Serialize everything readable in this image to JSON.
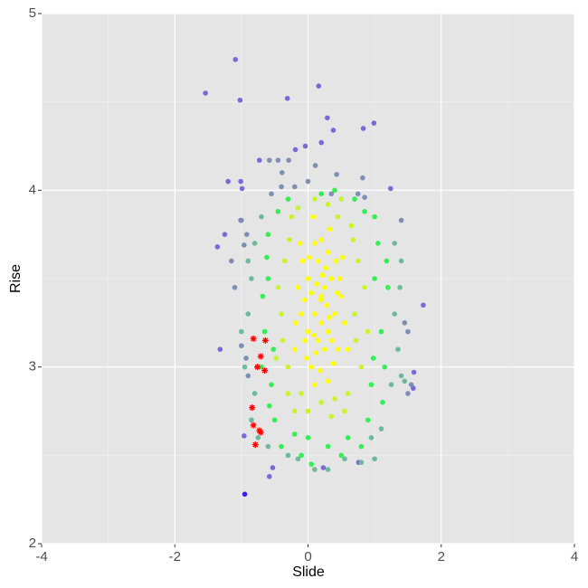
{
  "chart_data": {
    "type": "scatter",
    "x_label": "Slide",
    "y_label": "Rise",
    "xlim": [
      -4,
      4
    ],
    "ylim": [
      2,
      5
    ],
    "xticks": [
      -4,
      -2,
      0,
      2,
      4
    ],
    "yticks": [
      2,
      3,
      4,
      5
    ],
    "x_minor_ticks": [
      -3,
      -1,
      1,
      3
    ],
    "y_minor_ticks": [
      2.5,
      3.5,
      4.5
    ],
    "grid": true,
    "background": "#e5e5e5",
    "series": [
      {
        "color": "#7b68d8",
        "marker": "dot",
        "x": [
          -1.54,
          -1.09,
          -1.02,
          -0.31,
          0.16,
          0.29,
          0.38,
          0.99,
          0.83,
          -0.04,
          0.2,
          -0.19,
          -0.73,
          -1.2,
          -1.01,
          -0.99,
          1.24,
          -1.01,
          -1.25,
          -1.36,
          1.73,
          -1.32,
          1.59,
          1.58,
          -0.96,
          -0.53,
          -0.58,
          0.23,
          0.76
        ],
        "values": [
          4.55,
          4.74,
          4.51,
          4.52,
          4.59,
          4.41,
          4.34,
          4.38,
          4.35,
          4.25,
          4.27,
          4.23,
          4.17,
          4.05,
          4.05,
          4.01,
          4.01,
          3.83,
          3.75,
          3.68,
          3.35,
          3.1,
          2.97,
          2.88,
          2.61,
          2.43,
          2.38,
          2.43,
          2.46
        ]
      },
      {
        "color": "#7d8fb3",
        "marker": "dot",
        "x": [
          -1.0,
          -0.96,
          -1.1,
          -1.15,
          -0.92,
          -0.55,
          -0.4,
          0.0,
          0.75,
          0.85,
          1.4,
          1.5,
          1.45,
          -1.0,
          -0.93,
          -0.9,
          0.35,
          -0.2,
          0.11,
          0.43,
          0.82,
          -0.58,
          -0.45,
          -0.29,
          -0.39,
          1.5,
          1.55
        ],
        "values": [
          3.83,
          3.69,
          3.45,
          3.6,
          3.75,
          3.98,
          4.02,
          4.05,
          3.98,
          3.96,
          3.83,
          3.2,
          3.25,
          3.12,
          3.05,
          2.95,
          3.98,
          4.02,
          4.14,
          4.09,
          4.07,
          4.17,
          4.17,
          4.17,
          4.1,
          2.85,
          2.9
        ]
      },
      {
        "color": "#6dba98",
        "marker": "dot",
        "x": [
          -0.9,
          -0.85,
          -0.95,
          -0.8,
          1.3,
          1.35,
          1.25,
          1.4,
          1.3,
          -0.8,
          -0.85,
          0.95,
          1.1,
          -0.3,
          -0.15,
          0.1,
          0.3,
          0.8,
          1.45,
          1.4,
          -0.9,
          -0.75,
          1.38,
          -1.0,
          0.55,
          -0.6,
          1.0,
          -0.7
        ],
        "values": [
          3.3,
          3.5,
          3.0,
          2.85,
          3.3,
          3.1,
          2.9,
          3.6,
          3.7,
          3.7,
          2.7,
          2.6,
          2.65,
          2.5,
          2.48,
          2.42,
          2.42,
          2.46,
          2.92,
          2.95,
          3.6,
          2.6,
          3.45,
          3.2,
          2.48,
          2.55,
          2.48,
          3.85
        ]
      },
      {
        "color": "#33ee55",
        "marker": "dot",
        "x": [
          -0.6,
          -0.65,
          -0.55,
          1.0,
          1.1,
          0.95,
          1.05,
          -0.6,
          -0.5,
          0.9,
          0.0,
          0.3,
          -0.2,
          0.6,
          0.2,
          -0.3,
          0.7,
          1.15,
          -0.7,
          0.8,
          -0.4,
          1.2,
          -0.68,
          0.5,
          -0.1,
          1.0,
          -0.45,
          0.85,
          1.12,
          -0.58,
          0.4,
          0.05,
          1.18,
          -0.62,
          0.98,
          -0.52
        ],
        "values": [
          3.5,
          3.2,
          2.9,
          3.5,
          3.2,
          2.9,
          3.7,
          3.75,
          2.7,
          2.7,
          2.6,
          2.55,
          2.62,
          2.6,
          3.98,
          3.95,
          3.95,
          3.0,
          3.0,
          2.55,
          2.55,
          3.45,
          3.4,
          2.5,
          2.5,
          3.85,
          3.88,
          3.88,
          2.8,
          2.78,
          4.0,
          2.45,
          3.6,
          3.62,
          3.05,
          3.1
        ]
      },
      {
        "color": "#c8f52a",
        "marker": "dot",
        "x": [
          -0.4,
          -0.35,
          -0.3,
          0.7,
          0.75,
          0.8,
          0.6,
          0.65,
          -0.25,
          0.1,
          0.3,
          0.45,
          -0.1,
          0.2,
          0.4,
          -0.3,
          0.85,
          -0.45,
          0.55,
          0.0,
          -0.38,
          0.72,
          0.68,
          -0.28,
          0.5,
          -0.15,
          0.9,
          -0.48,
          0.35,
          -0.2
        ],
        "values": [
          3.3,
          3.6,
          3.0,
          3.3,
          3.6,
          3.0,
          2.85,
          3.8,
          3.85,
          3.95,
          3.92,
          3.85,
          2.85,
          2.8,
          2.82,
          2.85,
          3.45,
          3.45,
          2.75,
          2.75,
          3.15,
          3.15,
          3.72,
          3.72,
          3.95,
          3.9,
          3.2,
          3.05,
          2.72,
          2.75
        ]
      },
      {
        "color": "#ffff00",
        "marker": "dot",
        "x": [
          0.1,
          0.2,
          0.3,
          0.0,
          0.15,
          0.25,
          0.05,
          0.35,
          0.4,
          -0.1,
          -0.05,
          0.2,
          0.3,
          0.1,
          0.45,
          0.5,
          -0.15,
          0.0,
          0.22,
          0.12,
          0.38,
          -0.08,
          0.28,
          0.18,
          0.42,
          0.05,
          0.33,
          0.08,
          -0.2,
          0.55,
          0.15,
          0.25,
          -0.02,
          0.48,
          0.1,
          0.3,
          0.2,
          -0.12,
          0.36,
          0.6,
          0.02,
          0.27,
          0.13,
          0.44,
          -0.18,
          0.09,
          0.32,
          0.19,
          0.52,
          -0.05
        ],
        "values": [
          3.3,
          3.4,
          3.2,
          3.5,
          3.6,
          3.1,
          3.0,
          3.5,
          3.3,
          3.3,
          3.15,
          3.25,
          3.65,
          3.7,
          3.1,
          3.4,
          3.45,
          3.2,
          3.52,
          3.08,
          3.02,
          3.6,
          3.35,
          2.98,
          3.6,
          3.42,
          3.78,
          3.85,
          3.1,
          3.25,
          3.15,
          3.45,
          3.05,
          3.5,
          2.9,
          2.92,
          3.72,
          3.7,
          3.15,
          3.1,
          3.62,
          3.56,
          3.47,
          3.42,
          3.25,
          3.18,
          3.28,
          3.38,
          3.62,
          3.38
        ]
      },
      {
        "color": "#3a1ff0",
        "marker": "dot",
        "x": [
          -0.95
        ],
        "values": [
          2.28
        ]
      },
      {
        "color": "#ff0000",
        "marker": "star",
        "x": [
          -0.82,
          -0.64,
          -0.71,
          -0.76,
          -0.65,
          -0.84,
          -0.82,
          -0.73,
          -0.71,
          -0.79
        ],
        "values": [
          3.16,
          3.15,
          3.06,
          3.0,
          2.98,
          2.77,
          2.67,
          2.64,
          2.63,
          2.56
        ]
      }
    ]
  }
}
